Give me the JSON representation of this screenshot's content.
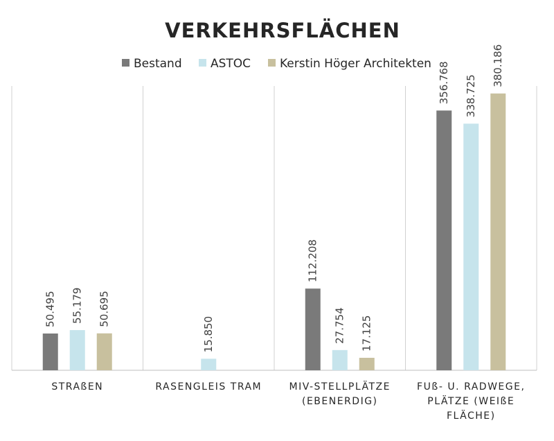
{
  "chart_data": {
    "type": "bar",
    "title": "VERKEHRSFLÄCHEN",
    "categories": [
      [
        "STRAßEN"
      ],
      [
        "RASENGLEIS TRAM"
      ],
      [
        "MIV-STELLPLÄTZE",
        "(EBENERDIG)"
      ],
      [
        "FUß- U. RADWEGE,",
        "PLÄTZE (WEIßE",
        "FLÄCHE)"
      ]
    ],
    "series": [
      {
        "name": "Bestand",
        "color": "#7a7a7a",
        "values": [
          50495,
          null,
          112208,
          356768
        ],
        "labels": [
          "50.495",
          "",
          "112.208",
          "356.768"
        ]
      },
      {
        "name": "ASTOC",
        "color": "#c6e4ec",
        "values": [
          55179,
          15850,
          27754,
          338725
        ],
        "labels": [
          "55.179",
          "15.850",
          "27.754",
          "338.725"
        ]
      },
      {
        "name": "Kerstin Höger Architekten",
        "color": "#c8c09e",
        "values": [
          50695,
          null,
          17125,
          380186
        ],
        "labels": [
          "50.695",
          "",
          "17.125",
          "380.186"
        ]
      }
    ],
    "xlabel": "",
    "ylabel": "",
    "ylim": [
      0,
      400000
    ],
    "grid": "vertical category separators",
    "legend": "top-center"
  }
}
